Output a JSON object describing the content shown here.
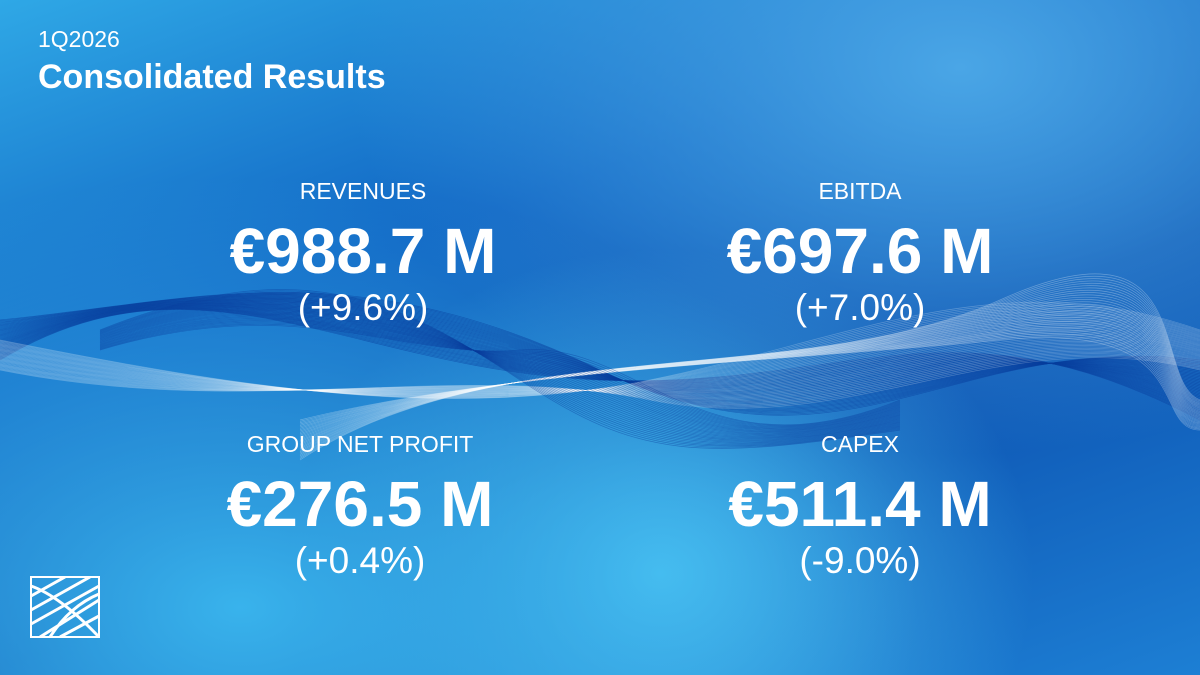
{
  "header": {
    "period": "1Q2026",
    "title": "Consolidated Results"
  },
  "metrics": [
    {
      "label": "REVENUES",
      "value": "€988.7 M",
      "change": "(+9.6%)"
    },
    {
      "label": "EBITDA",
      "value": "€697.6 M",
      "change": "(+7.0%)"
    },
    {
      "label": "GROUP NET PROFIT",
      "value": "€276.5 M",
      "change": "(+0.4%)"
    },
    {
      "label": "CAPEX",
      "value": "€511.4 M",
      "change": "(-9.0%)"
    }
  ]
}
